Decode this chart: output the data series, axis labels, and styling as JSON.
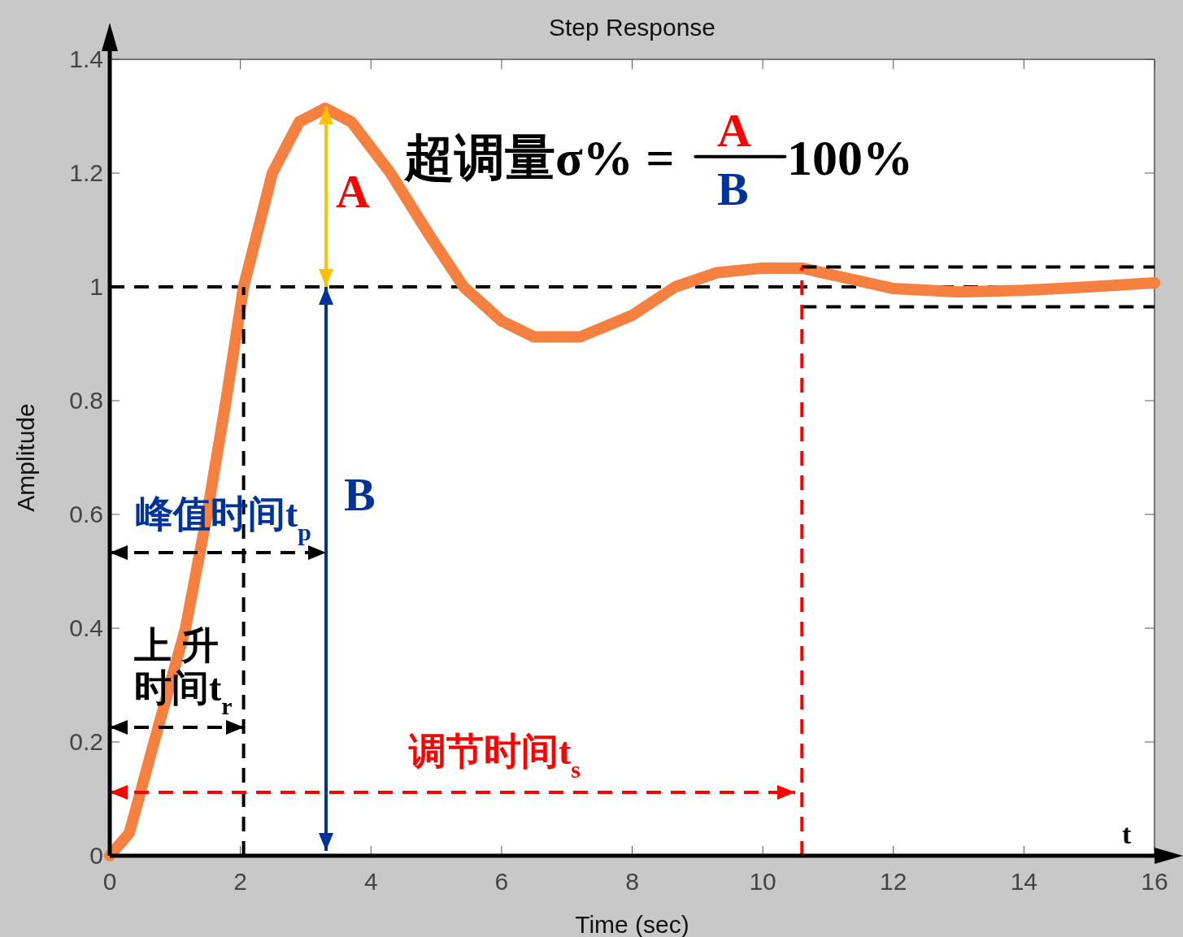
{
  "chart_data": {
    "type": "line",
    "title": "Step Response",
    "xlabel": "Time (sec)",
    "ylabel": "Amplitude",
    "xlim": [
      0,
      16
    ],
    "ylim": [
      0,
      1.4
    ],
    "xticks": [
      0,
      2,
      4,
      6,
      8,
      10,
      12,
      14,
      16
    ],
    "yticks": [
      0,
      0.2,
      0.4,
      0.6,
      0.8,
      1,
      1.2,
      1.4
    ],
    "grid": false,
    "series": [
      {
        "color": "#f58040",
        "x": [
          0,
          0.3,
          0.68,
          1.16,
          1.49,
          1.78,
          2.05,
          2.49,
          2.9,
          3.3,
          3.7,
          4.3,
          4.9,
          5.42,
          6.0,
          6.5,
          7.2,
          8.0,
          8.66,
          9.3,
          10.0,
          10.6,
          11.3,
          12.0,
          13.0,
          14.0,
          15.0,
          16.0
        ],
        "values": [
          0,
          0.04,
          0.2,
          0.4,
          0.6,
          0.8,
          1.0,
          1.2,
          1.29,
          1.314,
          1.29,
          1.2,
          1.09,
          1.0,
          0.94,
          0.912,
          0.912,
          0.95,
          1.0,
          1.025,
          1.033,
          1.033,
          1.015,
          0.997,
          0.991,
          0.994,
          1.0,
          1.007
        ],
        "line_style": "solid",
        "marker": "none"
      },
      {
        "color": "#000000",
        "x": [
          10.6,
          16
        ],
        "values": [
          1.035,
          1.035
        ],
        "line_style": "dashed",
        "marker": "none"
      },
      {
        "color": "#000000",
        "x": [
          10.6,
          16
        ],
        "values": [
          0.965,
          0.965
        ],
        "line_style": "dashed",
        "marker": "none"
      },
      {
        "color": "#000000",
        "x": [
          2.05,
          2.05
        ],
        "values": [
          0,
          1
        ],
        "line_style": "dashed",
        "marker": "none"
      },
      {
        "color": "#ff0000",
        "x": [
          10.6,
          10.6
        ],
        "values": [
          0,
          1.035
        ],
        "line_style": "dashed",
        "marker": "none"
      },
      {
        "color": "#000000",
        "x": [
          8.97,
          10.34
        ],
        "values": [
          1.229,
          1.229
        ],
        "line_style": "solid",
        "marker": "none"
      }
    ],
    "ref_lines": [
      {
        "axis": "y",
        "value": 1,
        "color": "#000000",
        "line_style": "dashed"
      }
    ],
    "annotations": [
      "A",
      "B",
      "峰值时间t$_{p}$",
      "上  升",
      "时间t$_{r}$",
      "调节时间t$_{s}$",
      "超调量σ% =",
      "A",
      "B",
      "100%",
      "t"
    ]
  }
}
